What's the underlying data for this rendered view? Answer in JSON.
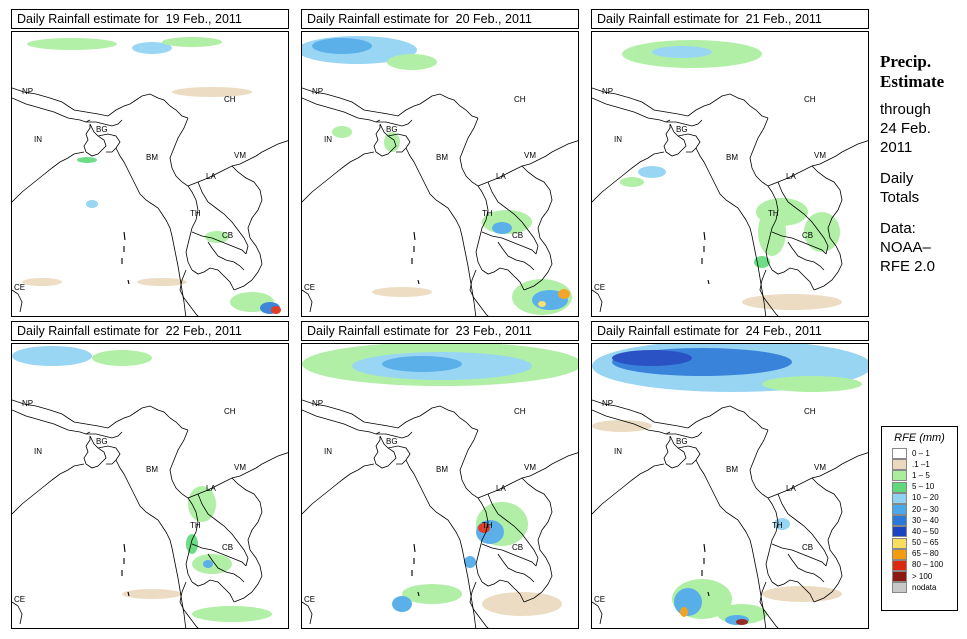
{
  "panels": [
    {
      "title": "Daily Rainfall estimate for  19 Feb., 2011"
    },
    {
      "title": "Daily Rainfall estimate for  20 Feb., 2011"
    },
    {
      "title": "Daily Rainfall estimate for  21 Feb., 2011"
    },
    {
      "title": "Daily Rainfall estimate for  22 Feb., 2011"
    },
    {
      "title": "Daily Rainfall estimate for  23 Feb., 2011"
    },
    {
      "title": "Daily Rainfall estimate for  24 Feb., 2011"
    }
  ],
  "country_labels": {
    "NP": "NP",
    "CH": "CH",
    "IN": "IN",
    "BG": "BG",
    "BM": "BM",
    "VM": "VM",
    "LA": "LA",
    "TH": "TH",
    "CB": "CB",
    "CE": "CE"
  },
  "side": {
    "heading_line1": "Precip.",
    "heading_line2": "Estimate",
    "through_line1": "through",
    "through_line2": "24 Feb.",
    "through_line3": "2011",
    "daily_line1": "Daily",
    "daily_line2": "Totals",
    "data_line1": "Data:",
    "data_line2": "NOAA–",
    "data_line3": "RFE 2.0"
  },
  "legend": {
    "title": "RFE (mm)",
    "items": [
      {
        "label": "0 – 1",
        "color": "#ffffff"
      },
      {
        "label": ".1 –1",
        "color": "#ead9bd"
      },
      {
        "label": "1 – 5",
        "color": "#a8ee9c"
      },
      {
        "label": "5 – 10",
        "color": "#5fd97a"
      },
      {
        "label": "10 – 20",
        "color": "#8fd2f2"
      },
      {
        "label": "20 – 30",
        "color": "#4aa8e8"
      },
      {
        "label": "30 – 40",
        "color": "#2a79d8"
      },
      {
        "label": "40 – 50",
        "color": "#1a44c0"
      },
      {
        "label": "50 – 65",
        "color": "#f7de60"
      },
      {
        "label": "65 – 80",
        "color": "#f39c12"
      },
      {
        "label": "80 – 100",
        "color": "#dc2a10"
      },
      {
        "label": "> 100",
        "color": "#8b1a12"
      },
      {
        "label": "nodata",
        "color": "#c8c8c8"
      }
    ]
  }
}
